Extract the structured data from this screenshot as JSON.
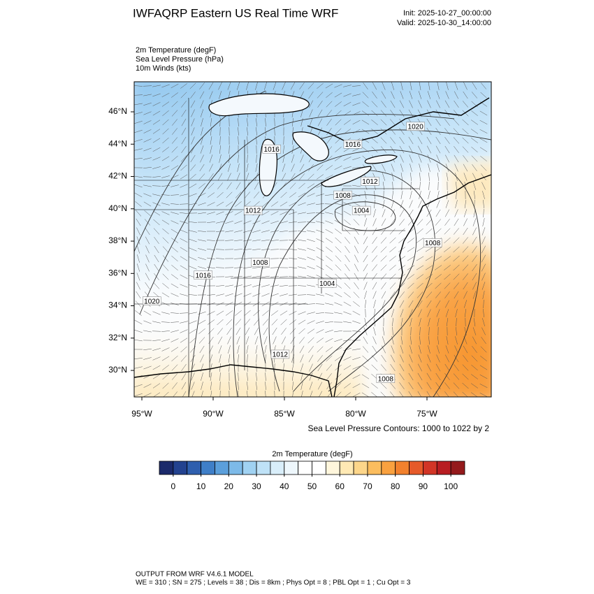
{
  "header": {
    "title": "IWFAQRP Eastern US Real Time WRF",
    "init": "Init: 2025-10-27_00:00:00",
    "valid": "Valid: 2025-10-30_14:00:00",
    "fields": [
      "2m Temperature   (degF)",
      "Sea Level Pressure   (hPa)",
      "10m Winds   (kts)"
    ]
  },
  "map": {
    "lonlim": [
      -95.54,
      -70.49
    ],
    "latlim": [
      28.36,
      47.86
    ],
    "lonticks": [
      {
        "value": -95,
        "label": "95°W"
      },
      {
        "value": -90,
        "label": "90°W"
      },
      {
        "value": -85,
        "label": "85°W"
      },
      {
        "value": -80,
        "label": "80°W"
      },
      {
        "value": -75,
        "label": "75°W"
      }
    ],
    "latticks": [
      {
        "value": 30,
        "label": "30°N"
      },
      {
        "value": 32,
        "label": "32°N"
      },
      {
        "value": 34,
        "label": "34°N"
      },
      {
        "value": 36,
        "label": "36°N"
      },
      {
        "value": 38,
        "label": "38°N"
      },
      {
        "value": 40,
        "label": "40°N"
      },
      {
        "value": 42,
        "label": "42°N"
      },
      {
        "value": 44,
        "label": "44°N"
      },
      {
        "value": 46,
        "label": "46°N"
      }
    ],
    "contour_labels": [
      {
        "label": "1020",
        "lon": -75.8,
        "lat": 45.1
      },
      {
        "label": "1016",
        "lon": -85.9,
        "lat": 43.7
      },
      {
        "label": "1016",
        "lon": -80.2,
        "lat": 44.0
      },
      {
        "label": "1012",
        "lon": -87.2,
        "lat": 39.9
      },
      {
        "label": "1012",
        "lon": -79.0,
        "lat": 41.7
      },
      {
        "label": "1008",
        "lon": -80.9,
        "lat": 40.85
      },
      {
        "label": "1004",
        "lon": -79.6,
        "lat": 39.9
      },
      {
        "label": "1008",
        "lon": -74.6,
        "lat": 37.9
      },
      {
        "label": "1008",
        "lon": -86.7,
        "lat": 36.7
      },
      {
        "label": "1016",
        "lon": -90.7,
        "lat": 35.9
      },
      {
        "label": "1004",
        "lon": -82.0,
        "lat": 35.4
      },
      {
        "label": "1020",
        "lon": -94.3,
        "lat": 34.3
      },
      {
        "label": "1012",
        "lon": -85.3,
        "lat": 31.0
      },
      {
        "label": "1008",
        "lon": -77.9,
        "lat": 29.5
      }
    ],
    "contour_note": "Sea Level Pressure Contours: 1000 to 1022 by 2"
  },
  "colorbar": {
    "title": "2m Temperature  (degF)",
    "lim": [
      -5,
      105
    ],
    "colors": [
      "#1b2a6b",
      "#23428f",
      "#2f5fae",
      "#3f7fc8",
      "#5b9fdb",
      "#7dbae8",
      "#a0d2f2",
      "#bfe2f7",
      "#d9eefa",
      "#eef7fc",
      "#ffffff",
      "#ffffff",
      "#fff6dc",
      "#ffe9b4",
      "#fdd68a",
      "#fbbd5e",
      "#f9a13f",
      "#f2812d",
      "#e65a2a",
      "#d23526",
      "#b81d22",
      "#941a1c"
    ],
    "ticks": [
      0,
      10,
      20,
      30,
      40,
      50,
      60,
      70,
      80,
      90,
      100
    ]
  },
  "footer": {
    "line1": "OUTPUT FROM WRF V4.6.1 MODEL",
    "line2": "WE = 310 ; SN = 275 ; Levels = 38 ; Dis = 8km ; Phys Opt = 8 ; PBL Opt = 1 ; Cu Opt = 3"
  }
}
